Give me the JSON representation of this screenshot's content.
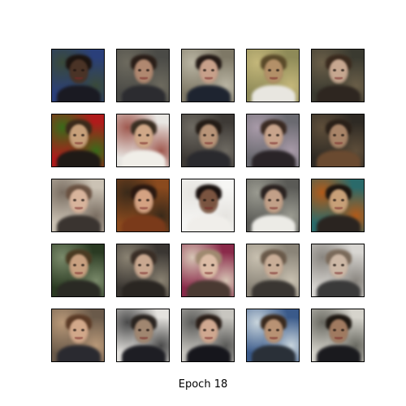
{
  "figure": {
    "caption": "Epoch 18",
    "grid_rows": 5,
    "grid_cols": 5,
    "samples": [
      {
        "bg": "#2a3f7a",
        "bg2": "#3a4a3a",
        "skin": "#4a3326",
        "hair": "#1c1410",
        "body": "#1a1a22"
      },
      {
        "bg": "#4a4a46",
        "bg2": "#6d6a5e",
        "skin": "#b08870",
        "hair": "#2a1e18",
        "body": "#2c2c30"
      },
      {
        "bg": "#7e7866",
        "bg2": "#b9b4a2",
        "skin": "#c7a08a",
        "hair": "#241a16",
        "body": "#1e2430"
      },
      {
        "bg": "#8e8a58",
        "bg2": "#c4b77a",
        "skin": "#b39068",
        "hair": "#5a4a2a",
        "body": "#e8e6e0"
      },
      {
        "bg": "#3a3a30",
        "bg2": "#6a5e48",
        "skin": "#c7a790",
        "hair": "#3a2a1e",
        "body": "#2e2620"
      },
      {
        "bg": "#b01b1b",
        "bg2": "#3a6a1a",
        "skin": "#c7a07a",
        "hair": "#3a2a1a",
        "body": "#1f1a16"
      },
      {
        "bg": "#e8e6e2",
        "bg2": "#a05a50",
        "skin": "#d0a888",
        "hair": "#3a2e22",
        "body": "#f0eee8"
      },
      {
        "bg": "#3e3a36",
        "bg2": "#6e6a62",
        "skin": "#b89478",
        "hair": "#241c16",
        "body": "#2a2a2e"
      },
      {
        "bg": "#6a6a70",
        "bg2": "#a89aa8",
        "skin": "#c8a48c",
        "hair": "#3a2a22",
        "body": "#2a2428"
      },
      {
        "bg": "#2e2a24",
        "bg2": "#5e4e3a",
        "skin": "#a88468",
        "hair": "#2a2018",
        "body": "#6a4a30"
      },
      {
        "bg": "#cbc2b4",
        "bg2": "#7a6e62",
        "skin": "#d8b49c",
        "hair": "#6a5242",
        "body": "#3a3430"
      },
      {
        "bg": "#8a4a1e",
        "bg2": "#3a2a1a",
        "skin": "#d4a282",
        "hair": "#2a1810",
        "body": "#7a3a1a"
      },
      {
        "bg": "#f6f6f4",
        "bg2": "#e6e4e0",
        "skin": "#7a5440",
        "hair": "#1a1210",
        "body": "#f0eeea"
      },
      {
        "bg": "#5a5a56",
        "bg2": "#9a9a90",
        "skin": "#c2a088",
        "hair": "#2a2220",
        "body": "#ecebe6"
      },
      {
        "bg": "#2a6a6a",
        "bg2": "#b05a1a",
        "skin": "#c8a078",
        "hair": "#1e1610",
        "body": "#2a2420"
      },
      {
        "bg": "#2a3a22",
        "bg2": "#7a8a6a",
        "skin": "#c8a080",
        "hair": "#4a3a22",
        "body": "#2a2a24"
      },
      {
        "bg": "#3a3632",
        "bg2": "#8a8272",
        "skin": "#c9a890",
        "hair": "#3a2e26",
        "body": "#2a2622"
      },
      {
        "bg": "#8a2a4a",
        "bg2": "#d6c4b4",
        "skin": "#dcbca6",
        "hair": "#a08a70",
        "body": "#4a3a32"
      },
      {
        "bg": "#8a8478",
        "bg2": "#c8c0b0",
        "skin": "#c9ae98",
        "hair": "#6a5a4a",
        "body": "#3a3632"
      },
      {
        "bg": "#d8d6d2",
        "bg2": "#8a8680",
        "skin": "#cdb8a6",
        "hair": "#7a6a5a",
        "body": "#3a3a3a"
      },
      {
        "bg": "#6a5a4a",
        "bg2": "#b89878",
        "skin": "#d2a88a",
        "hair": "#5a3a26",
        "body": "#2a2a30"
      },
      {
        "bg": "#e4e2de",
        "bg2": "#4a4a4a",
        "skin": "#a08670",
        "hair": "#2a2420",
        "body": "#1e1e24"
      },
      {
        "bg": "#c8c6c0",
        "bg2": "#5a5a58",
        "skin": "#d0a890",
        "hair": "#2a1e18",
        "body": "#16161c"
      },
      {
        "bg": "#3a5a8a",
        "bg2": "#c8d4dc",
        "skin": "#b89274",
        "hair": "#3a2a1e",
        "body": "#2a3038"
      },
      {
        "bg": "#d6d4cc",
        "bg2": "#6a6a62",
        "skin": "#a07a60",
        "hair": "#1e1812",
        "body": "#1a1a1e"
      }
    ]
  }
}
